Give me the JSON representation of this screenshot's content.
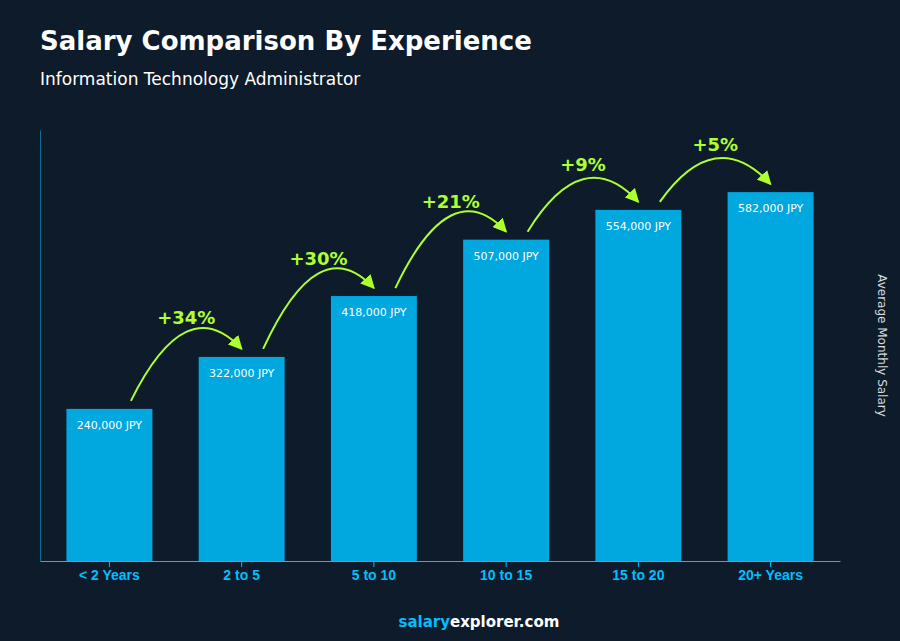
{
  "chart_data": {
    "type": "bar",
    "title": "Salary Comparison By Experience",
    "subtitle": "Information Technology Administrator",
    "ylabel": "Average Monthly Salary",
    "categories": [
      "< 2 Years",
      "2 to 5",
      "5 to 10",
      "10 to 15",
      "15 to 20",
      "20+ Years"
    ],
    "values": [
      240000,
      322000,
      418000,
      507000,
      554000,
      582000
    ],
    "value_labels": [
      "240,000 JPY",
      "322,000 JPY",
      "418,000 JPY",
      "507,000 JPY",
      "554,000 JPY",
      "582,000 JPY"
    ],
    "data_labels": true,
    "color": "#00BFFF",
    "ylim": [
      0,
      680000
    ],
    "grid": false,
    "tick_labels": "x",
    "annotations": [
      "+34%",
      "+30%",
      "+21%",
      "+9%",
      "+5%"
    ],
    "footer": [
      {
        "text": "salary",
        "color": "#00BFFF"
      },
      {
        "text": "explorer.com",
        "color": "#FFFFFF"
      }
    ]
  }
}
